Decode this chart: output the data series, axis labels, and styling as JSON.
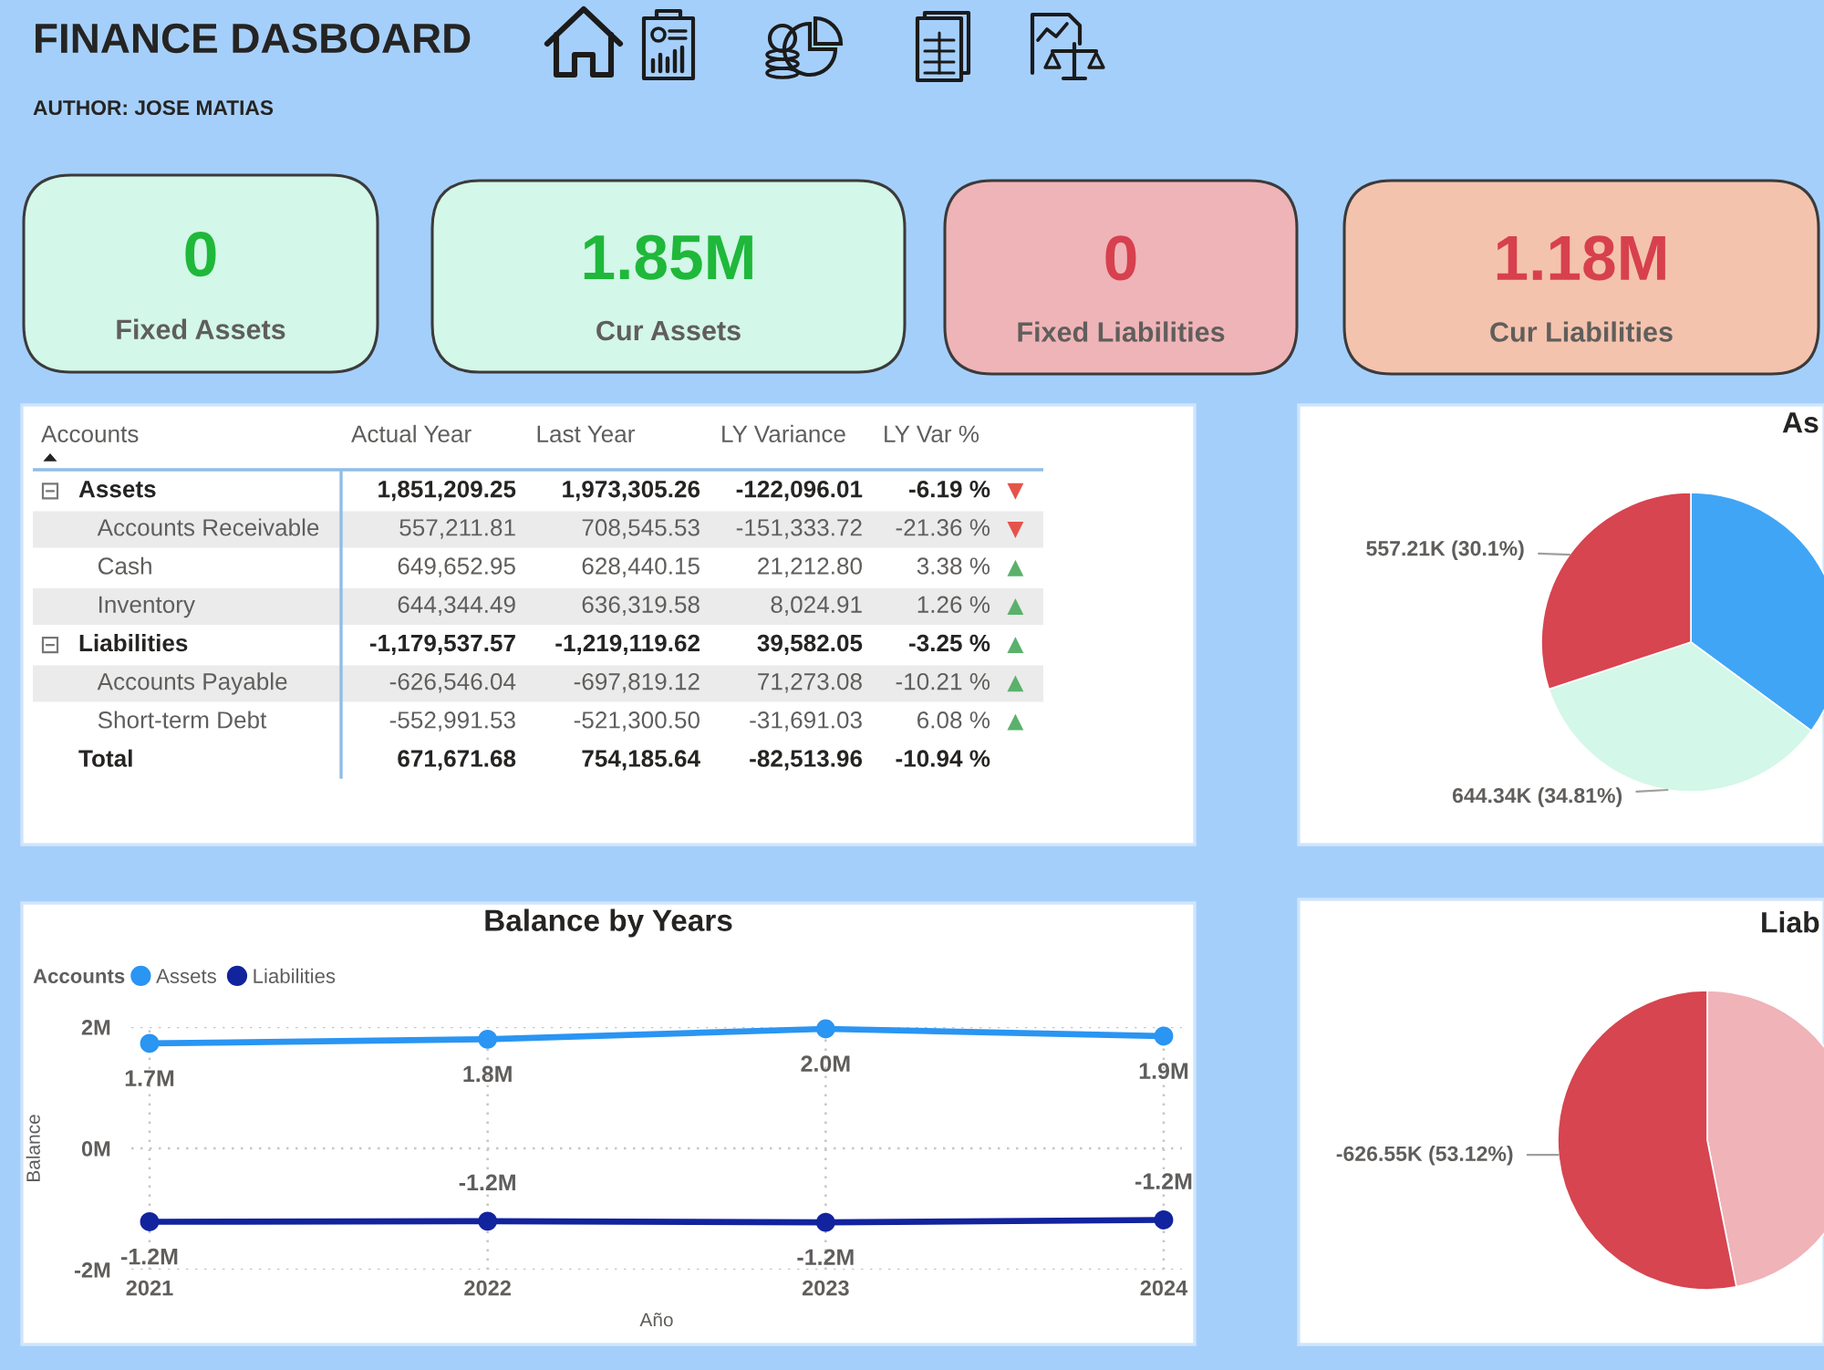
{
  "chart_data": [
    {
      "type": "other",
      "title": "FINANCE DASBOARD",
      "subtitle": "AUTHOR: JOSE MATIAS"
    },
    {
      "type": "other",
      "annotations": [
        "0",
        "Fixed Assets"
      ]
    },
    {
      "type": "other",
      "annotations": [
        "1.85M",
        "Cur Assets"
      ]
    },
    {
      "type": "other",
      "annotations": [
        "0",
        "Fixed Liabilities"
      ]
    },
    {
      "type": "other",
      "annotations": [
        "1.18M",
        "Cur Liabilities"
      ]
    },
    {
      "type": "other",
      "categories": [
        "Accounts",
        "Actual Year",
        "Last Year",
        "LY Variance",
        "LY Var %",
        null
      ],
      "cell_labels": [
        [
          "Assets",
          "1,851,209.25",
          "1,973,305.26",
          "-122,096.01",
          "-6.19 %",
          "▼"
        ],
        [
          "Accounts Receivable",
          "557,211.81",
          "708,545.53",
          "-151,333.72",
          "-21.36 %",
          "▼"
        ],
        [
          "Cash",
          "649,652.95",
          "628,440.15",
          "21,212.80",
          "3.38 %",
          "▲"
        ],
        [
          "Inventory",
          "644,344.49",
          "636,319.58",
          "8,024.91",
          "1.26 %",
          "▲"
        ],
        [
          "Liabilities",
          "-1,179,537.57",
          "-1,219,119.62",
          "39,582.05",
          "-3.25 %",
          "▲"
        ],
        [
          "Accounts Payable",
          "-626,546.04",
          "-697,819.12",
          "71,273.08",
          "-10.21 %",
          "▲"
        ],
        [
          "Short-term Debt",
          "-552,991.53",
          "-521,300.50",
          "-31,691.03",
          "6.08 %",
          "▲"
        ],
        [
          "Total",
          "671,671.68",
          "754,185.64",
          "-82,513.96",
          "-10.94 %",
          null
        ]
      ]
    },
    {
      "type": "pie",
      "title": "As",
      "categories": [
        null,
        null,
        null
      ],
      "values": [
        35.09,
        34.81,
        30.1
      ],
      "colors": [
        "#41a5f5",
        "#d3f7e8",
        "#d64550"
      ],
      "value_labels": [
        null,
        "644.34K (34.81%)",
        "557.21K (30.1%)"
      ]
    },
    {
      "type": "line",
      "title": "Balance by Years",
      "legend_title": "Accounts",
      "xlabel": "Año",
      "ylabel": "Balance",
      "categories": [
        "2021",
        "2022",
        "2023",
        "2024"
      ],
      "series": [
        {
          "name": "Assets",
          "color": "#2a95f2",
          "values": [
            1.73,
            1.8,
            1.97,
            1.85
          ],
          "value_labels": [
            "1.7M",
            "1.8M",
            "2.0M",
            "1.9M"
          ]
        },
        {
          "name": "Liabilities",
          "color": "#12239e",
          "values": [
            -1.21,
            -1.2,
            -1.22,
            -1.18
          ],
          "value_labels": [
            "-1.2M",
            "-1.2M",
            "-1.2M",
            "-1.2M"
          ]
        }
      ],
      "ylim": [
        -2,
        2
      ],
      "yticks": [
        {
          "value": -2,
          "label": "-2M"
        },
        {
          "value": 0,
          "label": "0M"
        },
        {
          "value": 2,
          "label": "2M"
        }
      ],
      "grid": true,
      "legend": "top left",
      "marker": "circle",
      "line_style": "solid"
    },
    {
      "type": "pie",
      "title": "Liab",
      "categories": [
        null,
        null
      ],
      "values": [
        46.88,
        53.12
      ],
      "colors": [
        "#efb3b8",
        "#d64550"
      ],
      "value_labels": [
        null,
        "-626.55K (53.12%)"
      ]
    }
  ]
}
